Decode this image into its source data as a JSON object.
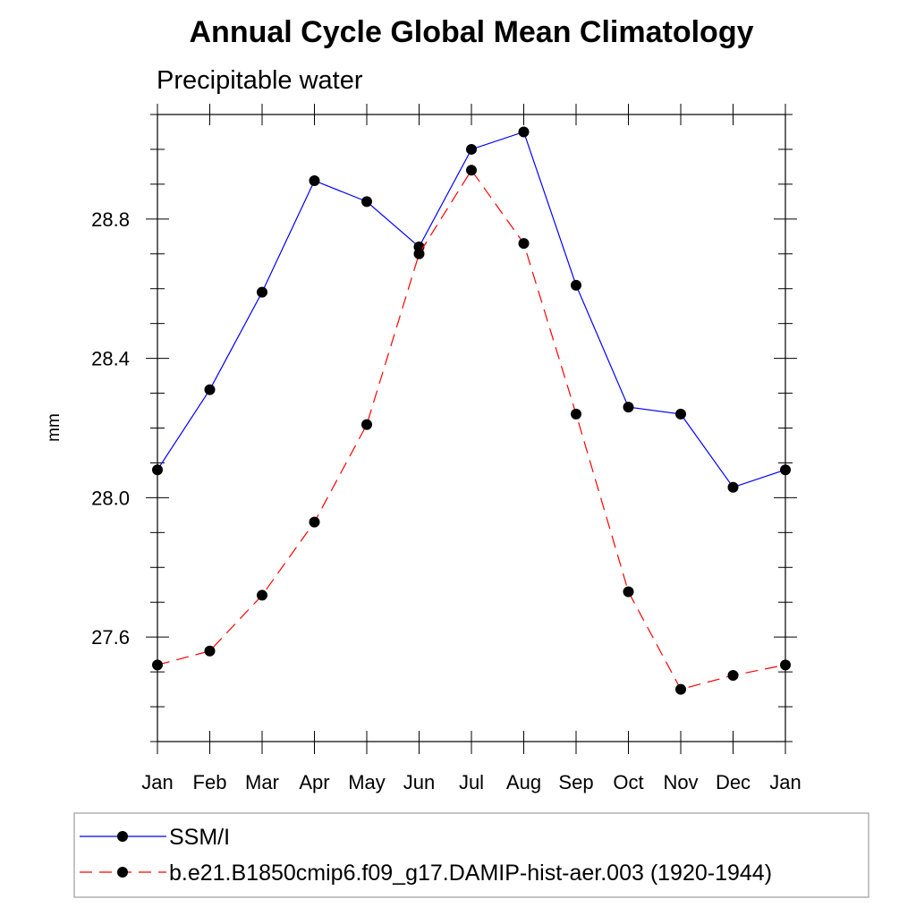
{
  "chart_data": {
    "type": "line",
    "title": "Annual Cycle Global Mean Climatology",
    "subtitle": "Precipitable water",
    "xlabel": "",
    "ylabel": "mm",
    "categories": [
      "Jan",
      "Feb",
      "Mar",
      "Apr",
      "May",
      "Jun",
      "Jul",
      "Aug",
      "Sep",
      "Oct",
      "Nov",
      "Dec",
      "Jan"
    ],
    "ylim": [
      27.3,
      29.1
    ],
    "yticks": [
      27.6,
      28.0,
      28.4,
      28.8
    ],
    "ytick_labels": [
      "27.6",
      "28.0",
      "28.4",
      "28.8"
    ],
    "grid": false,
    "legend_position": "bottom",
    "series": [
      {
        "name": "SSM/I",
        "color": "#0000ff",
        "dash": "solid",
        "marker": "circle",
        "values": [
          28.08,
          28.31,
          28.59,
          28.91,
          28.85,
          28.72,
          29.0,
          29.05,
          28.61,
          28.26,
          28.24,
          28.03,
          28.08
        ]
      },
      {
        "name": "b.e21.B1850cmip6.f09_g17.DAMIP-hist-aer.003 (1920-1944)",
        "color": "#ff0000",
        "dash": "dashed",
        "marker": "circle",
        "values": [
          27.52,
          27.56,
          27.72,
          27.93,
          28.21,
          28.7,
          28.94,
          28.73,
          28.24,
          27.73,
          27.45,
          27.49,
          27.52
        ]
      }
    ]
  }
}
